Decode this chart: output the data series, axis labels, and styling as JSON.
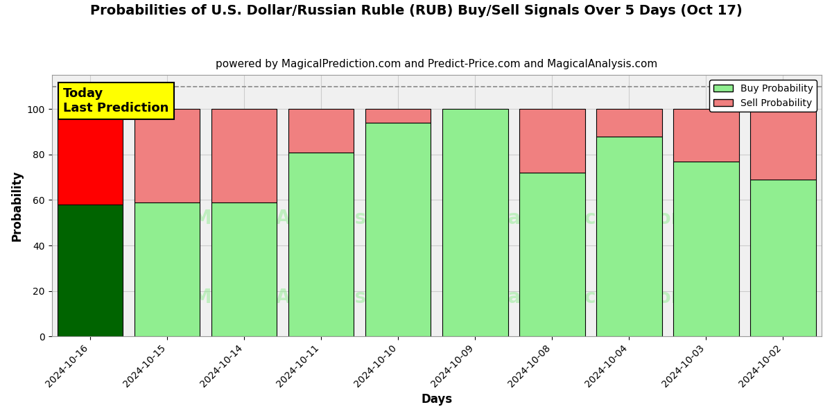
{
  "title": "Probabilities of U.S. Dollar/Russian Ruble (RUB) Buy/Sell Signals Over 5 Days (Oct 17)",
  "subtitle": "powered by MagicalPrediction.com and Predict-Price.com and MagicalAnalysis.com",
  "xlabel": "Days",
  "ylabel": "Probability",
  "categories": [
    "2024-10-16",
    "2024-10-15",
    "2024-10-14",
    "2024-10-11",
    "2024-10-10",
    "2024-10-09",
    "2024-10-08",
    "2024-10-04",
    "2024-10-03",
    "2024-10-02"
  ],
  "buy_values": [
    58,
    59,
    59,
    81,
    94,
    100,
    72,
    88,
    77,
    69
  ],
  "sell_values": [
    42,
    41,
    41,
    19,
    6,
    0,
    28,
    12,
    23,
    31
  ],
  "buy_color_today": "#006400",
  "sell_color_today": "#ff0000",
  "buy_color_rest": "#90EE90",
  "sell_color_rest": "#F08080",
  "bar_edge_color": "black",
  "bar_edge_width": 0.8,
  "ylim": [
    0,
    115
  ],
  "yticks": [
    0,
    20,
    40,
    60,
    80,
    100
  ],
  "dashed_line_y": 110,
  "dashed_line_color": "#888888",
  "annotation_text": "Today\nLast Prediction",
  "annotation_bg_color": "#FFFF00",
  "legend_buy_label": "Buy Probability",
  "legend_sell_label": "Sell Probability",
  "watermark_color": "#90EE90",
  "watermark_alpha": 0.5,
  "grid_color": "#cccccc",
  "plot_bg_color": "#f0f0f0",
  "background_color": "#ffffff",
  "title_fontsize": 14,
  "subtitle_fontsize": 11,
  "label_fontsize": 12,
  "tick_fontsize": 10,
  "annotation_fontsize": 13,
  "figsize": [
    12,
    6
  ]
}
